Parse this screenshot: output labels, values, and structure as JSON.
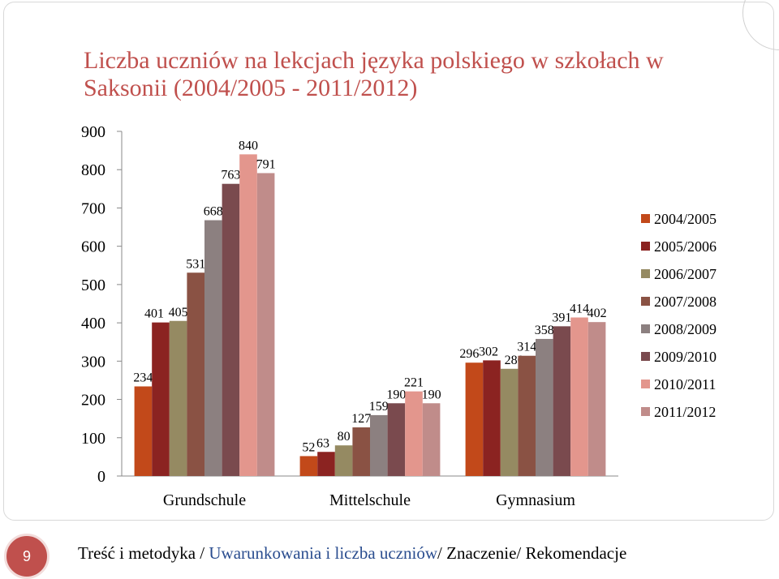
{
  "title": {
    "line1": "Liczba uczniów na lekcjach języka polskiego w szkołach w",
    "line2": "Saksonii (2004/2005 - 2011/2012)"
  },
  "chart_data": {
    "type": "bar",
    "title": "Liczba uczniów na lekcjach języka polskiego w szkołach w Saksonii (2004/2005 - 2011/2012)",
    "categories": [
      "Grundschule",
      "Mittelschule",
      "Gymnasium"
    ],
    "series": [
      {
        "name": "2004/2005",
        "color": "#c2491a",
        "values": [
          234,
          52,
          296
        ]
      },
      {
        "name": "2005/2006",
        "color": "#8b2321",
        "values": [
          401,
          63,
          302
        ]
      },
      {
        "name": "2006/2007",
        "color": "#958a62",
        "values": [
          405,
          80,
          280
        ]
      },
      {
        "name": "2007/2008",
        "color": "#8a5244",
        "values": [
          531,
          127,
          314
        ]
      },
      {
        "name": "2008/2009",
        "color": "#8c8080",
        "values": [
          668,
          159,
          358
        ]
      },
      {
        "name": "2009/2010",
        "color": "#7a4a4e",
        "values": [
          763,
          190,
          391
        ]
      },
      {
        "name": "2010/2011",
        "color": "#e3968d",
        "values": [
          840,
          221,
          414
        ]
      },
      {
        "name": "2011/2012",
        "color": "#c08c8a",
        "values": [
          791,
          190,
          402
        ]
      }
    ],
    "yticks": [
      "0",
      "100",
      "200",
      "300",
      "400",
      "500",
      "600",
      "700",
      "800",
      "900"
    ],
    "ylim": [
      0,
      900
    ],
    "legend_position": "right",
    "grid": false,
    "xlabel": "",
    "ylabel": ""
  },
  "footer": {
    "page_number": "9",
    "breadcrumb_part1": "Treść i metodyka / ",
    "breadcrumb_highlight": "Uwarunkowania i liczba uczniów",
    "breadcrumb_part2": "/ Znaczenie/ Rekomendacje"
  },
  "colors": {
    "accent": "#c0504d",
    "link": "#2a4d8f"
  }
}
